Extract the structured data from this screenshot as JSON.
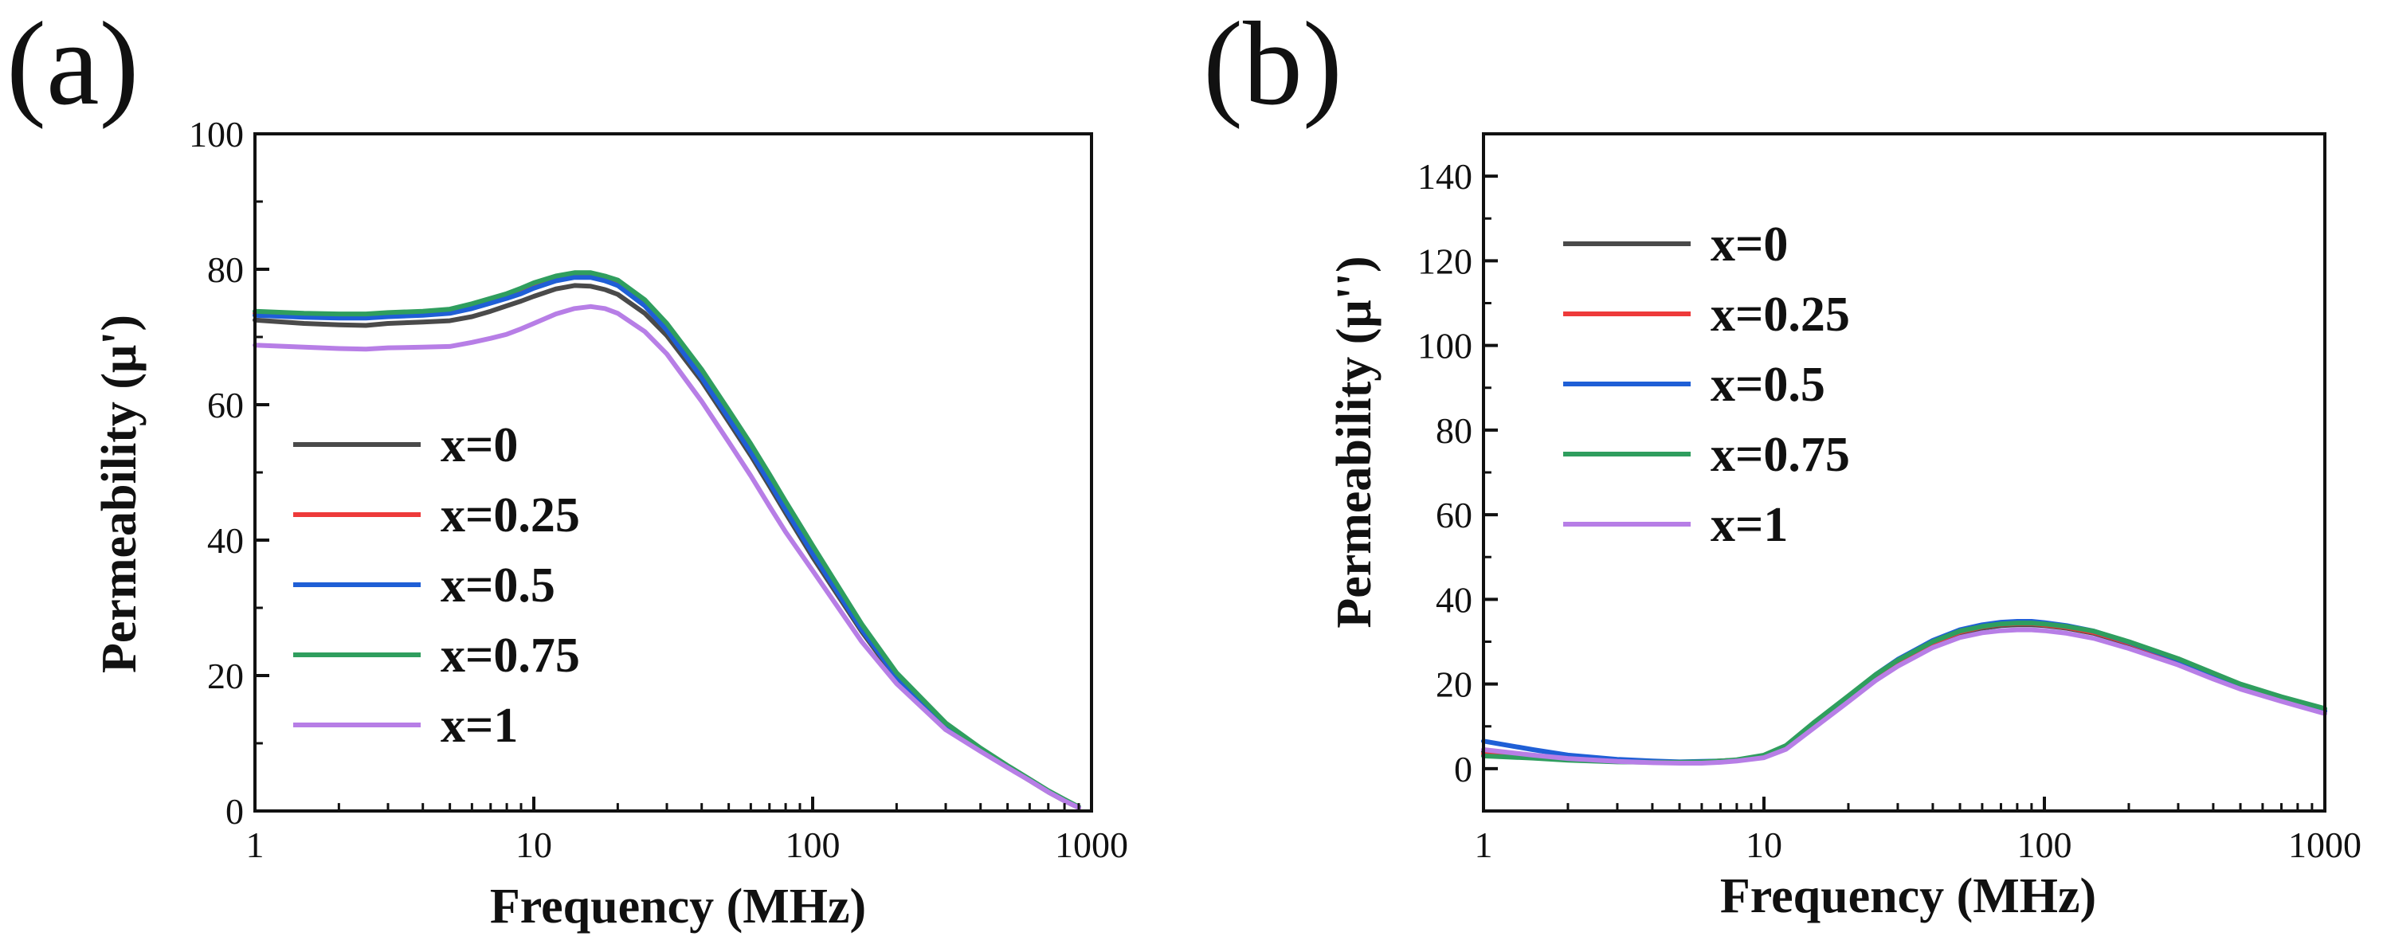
{
  "chart_data": [
    {
      "type": "line",
      "panel_label": "(a)",
      "xlabel": "Frequency (MHz)",
      "ylabel": "Permeability (μ')",
      "xscale": "log",
      "xlim": [
        1,
        1000
      ],
      "ylim": [
        0,
        100
      ],
      "xticks": [
        1,
        10,
        100,
        1000
      ],
      "xtick_labels": [
        "1",
        "10",
        "100",
        "1000"
      ],
      "yticks": [
        0,
        20,
        40,
        60,
        80,
        100
      ],
      "ytick_labels": [
        "0",
        "20",
        "40",
        "60",
        "80",
        "100"
      ],
      "grid": false,
      "legend": "bottom-left",
      "x": [
        1,
        1.5,
        2,
        2.5,
        3,
        4,
        5,
        6,
        7,
        8,
        9,
        10,
        12,
        14,
        16,
        18,
        20,
        25,
        30,
        40,
        50,
        60,
        70,
        80,
        100,
        150,
        200,
        300,
        400,
        500,
        600,
        700,
        800,
        900
      ],
      "series": [
        {
          "name": "x=0",
          "color": "#4a4a4a",
          "values": [
            72.5,
            72.0,
            71.8,
            71.7,
            72.0,
            72.2,
            72.4,
            73.0,
            73.8,
            74.6,
            75.3,
            76.0,
            77.1,
            77.6,
            77.5,
            77.0,
            76.3,
            73.5,
            70.2,
            63.5,
            57.5,
            52.5,
            48.0,
            44.0,
            37.5,
            26.5,
            19.5,
            12.5,
            9.0,
            6.5,
            4.5,
            2.8,
            1.5,
            0.5
          ]
        },
        {
          "name": "x=0.25",
          "color": "#ee3a3a",
          "values": [
            73.5,
            73.2,
            73.1,
            73.0,
            73.2,
            73.4,
            73.7,
            74.5,
            75.3,
            76.0,
            76.8,
            77.5,
            78.6,
            79.2,
            79.2,
            78.7,
            78.0,
            75.0,
            71.5,
            64.5,
            58.5,
            53.5,
            49.0,
            45.0,
            38.5,
            27.0,
            20.0,
            12.8,
            9.2,
            6.6,
            4.6,
            2.9,
            1.6,
            0.6
          ]
        },
        {
          "name": "x=0.5",
          "color": "#1f5fd6",
          "values": [
            73.2,
            72.9,
            72.8,
            72.8,
            73.0,
            73.2,
            73.5,
            74.2,
            75.0,
            75.7,
            76.4,
            77.2,
            78.3,
            78.8,
            78.8,
            78.3,
            77.6,
            74.6,
            71.0,
            64.0,
            58.0,
            53.0,
            48.5,
            44.5,
            38.0,
            26.8,
            19.8,
            12.7,
            9.1,
            6.6,
            4.6,
            2.9,
            1.6,
            0.6
          ]
        },
        {
          "name": "x=0.75",
          "color": "#2f9e5e",
          "values": [
            73.8,
            73.5,
            73.4,
            73.4,
            73.6,
            73.8,
            74.1,
            74.9,
            75.7,
            76.4,
            77.2,
            78.0,
            79.0,
            79.5,
            79.5,
            79.0,
            78.4,
            75.5,
            72.0,
            65.2,
            59.2,
            54.2,
            49.7,
            45.7,
            39.2,
            27.6,
            20.4,
            13.0,
            9.3,
            6.7,
            4.7,
            3.0,
            1.7,
            0.6
          ]
        },
        {
          "name": "x=1",
          "color": "#b77ee6",
          "values": [
            68.8,
            68.5,
            68.3,
            68.2,
            68.4,
            68.5,
            68.6,
            69.2,
            69.8,
            70.4,
            71.2,
            72.0,
            73.4,
            74.2,
            74.5,
            74.2,
            73.5,
            70.8,
            67.5,
            60.5,
            54.5,
            49.5,
            45.0,
            41.2,
            35.5,
            25.0,
            18.8,
            12.0,
            8.8,
            6.4,
            4.5,
            2.8,
            1.5,
            0.5
          ]
        }
      ]
    },
    {
      "type": "line",
      "panel_label": "(b)",
      "xlabel": "Frequency (MHz)",
      "ylabel": "Permeability (μ'')",
      "xscale": "log",
      "xlim": [
        1,
        1000
      ],
      "ylim": [
        -10,
        150
      ],
      "xticks": [
        1,
        10,
        100,
        1000
      ],
      "xtick_labels": [
        "1",
        "10",
        "100",
        "1000"
      ],
      "yticks": [
        0,
        20,
        40,
        60,
        80,
        100,
        120,
        140
      ],
      "ytick_labels": [
        "0",
        "20",
        "40",
        "60",
        "80",
        "100",
        "120",
        "140"
      ],
      "grid": false,
      "legend": "top-left",
      "x": [
        1,
        1.5,
        2,
        3,
        4,
        5,
        6,
        7,
        8,
        10,
        12,
        15,
        20,
        25,
        30,
        40,
        50,
        60,
        70,
        80,
        90,
        100,
        120,
        150,
        200,
        300,
        400,
        500,
        700,
        1000
      ],
      "series": [
        {
          "name": "x=0",
          "color": "#4a4a4a",
          "values": [
            4.0,
            3.0,
            2.3,
            1.8,
            1.6,
            1.5,
            1.6,
            1.8,
            2.0,
            3.0,
            5.0,
            10.0,
            16.5,
            21.5,
            25.0,
            29.5,
            32.0,
            33.2,
            33.8,
            34.0,
            34.0,
            33.8,
            33.2,
            32.0,
            29.5,
            25.5,
            22.0,
            19.5,
            16.5,
            13.5
          ]
        },
        {
          "name": "x=0.25",
          "color": "#ee3a3a",
          "values": [
            3.5,
            2.7,
            2.2,
            1.7,
            1.5,
            1.5,
            1.6,
            1.8,
            2.0,
            3.0,
            5.0,
            10.2,
            16.7,
            21.8,
            25.3,
            29.8,
            32.3,
            33.5,
            34.1,
            34.3,
            34.3,
            34.0,
            33.4,
            32.2,
            29.7,
            25.6,
            22.1,
            19.6,
            16.6,
            13.8
          ]
        },
        {
          "name": "x=0.5",
          "color": "#1f5fd6",
          "values": [
            6.5,
            4.5,
            3.2,
            2.2,
            1.8,
            1.6,
            1.7,
            1.8,
            2.0,
            3.0,
            5.2,
            10.5,
            17.0,
            22.2,
            25.8,
            30.3,
            32.8,
            34.0,
            34.6,
            34.8,
            34.8,
            34.5,
            33.8,
            32.5,
            29.9,
            25.7,
            22.2,
            19.7,
            16.6,
            13.7
          ]
        },
        {
          "name": "x=0.75",
          "color": "#2f9e5e",
          "values": [
            3.0,
            2.5,
            2.0,
            1.6,
            1.5,
            1.5,
            1.6,
            1.8,
            2.1,
            3.2,
            5.5,
            10.8,
            17.2,
            22.2,
            25.6,
            30.0,
            32.5,
            33.6,
            34.2,
            34.4,
            34.4,
            34.2,
            33.6,
            32.5,
            30.0,
            26.0,
            22.6,
            20.0,
            17.0,
            14.2
          ]
        },
        {
          "name": "x=1",
          "color": "#b77ee6",
          "values": [
            4.5,
            3.2,
            2.4,
            1.7,
            1.4,
            1.3,
            1.3,
            1.5,
            1.8,
            2.6,
            4.6,
            9.5,
            15.8,
            20.8,
            24.2,
            28.6,
            31.0,
            32.1,
            32.6,
            32.8,
            32.8,
            32.6,
            32.0,
            30.8,
            28.4,
            24.5,
            21.2,
            18.8,
            15.9,
            13.0
          ]
        }
      ]
    }
  ]
}
